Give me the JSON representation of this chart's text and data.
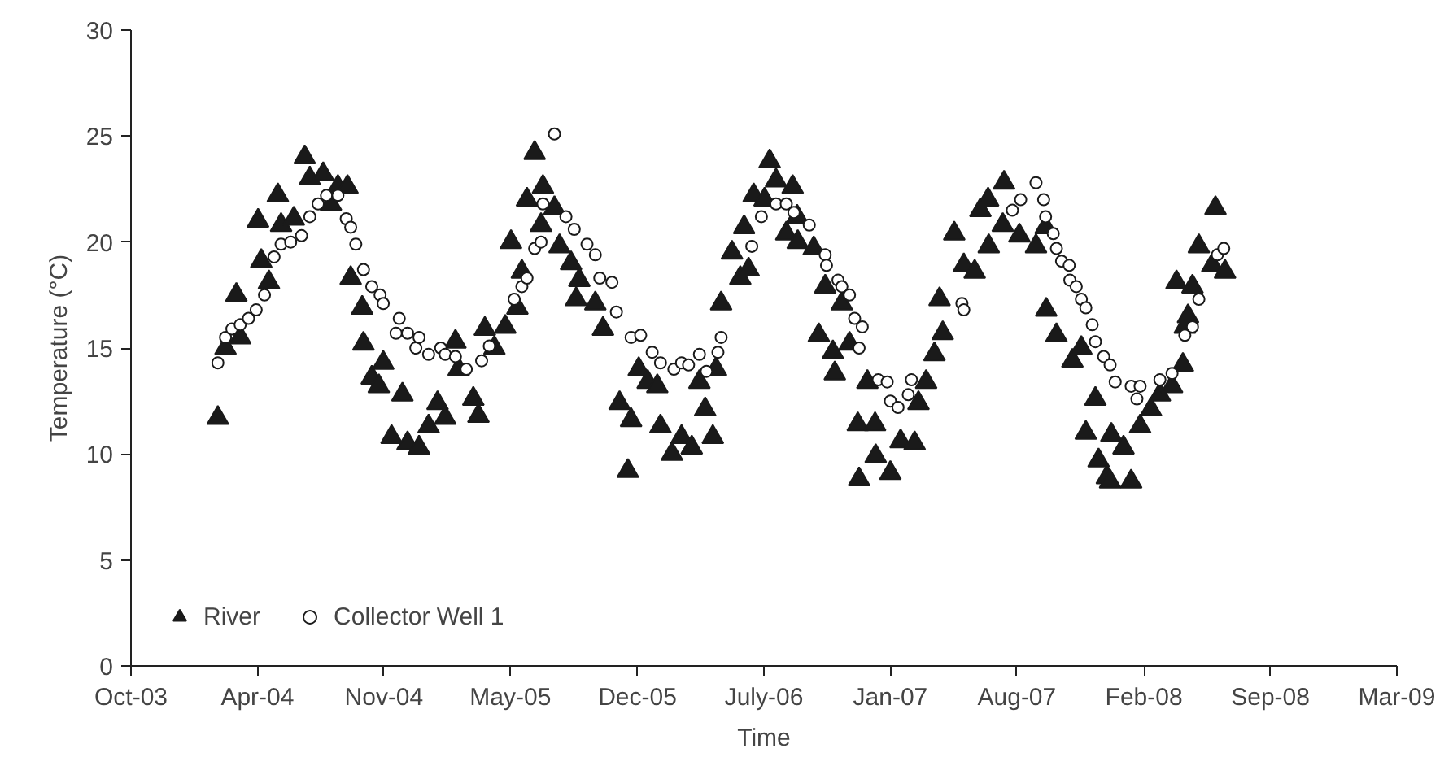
{
  "chart_data": {
    "type": "scatter",
    "xlabel": "Time",
    "ylabel": "Temperature (°C)",
    "xlim": [
      "2003-10-15",
      "2009-03-19"
    ],
    "ylim": [
      0,
      30
    ],
    "xticks": [
      {
        "value": "2003-10-15",
        "label": "Oct-03"
      },
      {
        "value": "2004-04-30",
        "label": "Apr-04"
      },
      {
        "value": "2004-11-14",
        "label": "Nov-04"
      },
      {
        "value": "2005-05-31",
        "label": "May-05"
      },
      {
        "value": "2005-12-16",
        "label": "Dec-05"
      },
      {
        "value": "2006-07-02",
        "label": "July-06"
      },
      {
        "value": "2007-01-16",
        "label": "Jan-07"
      },
      {
        "value": "2007-08-02",
        "label": "Aug-07"
      },
      {
        "value": "2008-02-17",
        "label": "Feb-08"
      },
      {
        "value": "2008-09-02",
        "label": "Sep-08"
      },
      {
        "value": "2009-03-19",
        "label": "Mar-09"
      }
    ],
    "yticks": [
      0,
      5,
      10,
      15,
      20,
      25,
      30
    ],
    "grid": false,
    "legend": "bottom left",
    "series": [
      {
        "name": "River",
        "color": "#1a1a1a",
        "marker": "triangle",
        "x": [
          "2004-02-28",
          "2004-03-11",
          "2004-03-28",
          "2004-04-03",
          "2004-05-01",
          "2004-05-06",
          "2004-05-18",
          "2004-06-01",
          "2004-06-06",
          "2004-06-26",
          "2004-07-13",
          "2004-07-21",
          "2004-08-11",
          "2004-08-23",
          "2004-09-03",
          "2004-09-18",
          "2004-09-23",
          "2004-10-11",
          "2004-10-13",
          "2004-10-26",
          "2004-11-06",
          "2004-11-13",
          "2004-11-26",
          "2004-12-13",
          "2004-12-21",
          "2005-01-08",
          "2005-01-23",
          "2005-02-06",
          "2005-02-18",
          "2005-03-06",
          "2005-03-11",
          "2005-04-03",
          "2005-04-11",
          "2005-04-21",
          "2005-05-06",
          "2005-05-23",
          "2005-06-01",
          "2005-06-11",
          "2005-06-18",
          "2005-06-26",
          "2005-07-08",
          "2005-07-18",
          "2005-07-21",
          "2005-08-08",
          "2005-08-16",
          "2005-09-03",
          "2005-09-11",
          "2005-09-16",
          "2005-10-11",
          "2005-10-23",
          "2005-11-18",
          "2005-12-01",
          "2005-12-06",
          "2005-12-18",
          "2006-01-01",
          "2006-01-16",
          "2006-01-21",
          "2006-02-08",
          "2006-02-23",
          "2006-03-11",
          "2006-03-23",
          "2006-04-01",
          "2006-04-13",
          "2006-04-18",
          "2006-04-26",
          "2006-05-13",
          "2006-05-26",
          "2006-06-01",
          "2006-06-08",
          "2006-06-16",
          "2006-07-03",
          "2006-07-11",
          "2006-07-21",
          "2006-08-06",
          "2006-08-16",
          "2006-08-23",
          "2006-08-24",
          "2006-09-18",
          "2006-09-26",
          "2006-10-06",
          "2006-10-18",
          "2006-10-21",
          "2006-11-01",
          "2006-11-13",
          "2006-11-26",
          "2006-11-28",
          "2006-12-11",
          "2006-12-23",
          "2006-12-24",
          "2007-01-16",
          "2007-02-01",
          "2007-02-23",
          "2007-03-01",
          "2007-03-13",
          "2007-03-26",
          "2007-04-03",
          "2007-04-08",
          "2007-04-26",
          "2007-05-11",
          "2007-05-28",
          "2007-06-06",
          "2007-06-18",
          "2007-06-19",
          "2007-07-11",
          "2007-07-13",
          "2007-08-06",
          "2007-09-01",
          "2007-09-16",
          "2007-09-17",
          "2007-10-03",
          "2007-10-28",
          "2007-11-11",
          "2007-11-18",
          "2007-12-03",
          "2007-12-08",
          "2007-12-21",
          "2007-12-26",
          "2007-12-28",
          "2008-01-16",
          "2008-01-28",
          "2008-02-11",
          "2008-02-28",
          "2008-03-13",
          "2008-04-01",
          "2008-04-08",
          "2008-04-18",
          "2008-04-21",
          "2008-04-26",
          "2008-05-03",
          "2008-05-13",
          "2008-06-03",
          "2008-06-08",
          "2008-06-23"
        ],
        "values": [
          11.7,
          15.0,
          17.5,
          15.5,
          21.0,
          19.1,
          18.1,
          22.2,
          20.8,
          21.1,
          24.0,
          23.0,
          23.2,
          21.8,
          22.6,
          22.6,
          18.3,
          16.9,
          15.2,
          13.6,
          13.2,
          14.3,
          10.8,
          12.8,
          10.5,
          10.3,
          11.3,
          12.4,
          11.7,
          15.3,
          14.0,
          12.6,
          11.8,
          15.9,
          15.0,
          16.0,
          20.0,
          16.9,
          18.6,
          22.0,
          24.2,
          20.8,
          22.6,
          21.6,
          19.8,
          19.0,
          17.3,
          18.2,
          17.1,
          15.9,
          12.4,
          9.2,
          11.6,
          14.0,
          13.4,
          13.2,
          11.3,
          10.0,
          10.8,
          10.3,
          13.4,
          12.1,
          10.8,
          14.0,
          17.1,
          19.5,
          18.3,
          20.7,
          18.7,
          22.2,
          22.0,
          23.8,
          22.9,
          20.4,
          22.6,
          21.2,
          20.0,
          19.7,
          15.6,
          17.9,
          14.8,
          13.8,
          17.1,
          15.2,
          11.4,
          8.8,
          13.4,
          11.4,
          9.9,
          9.1,
          10.6,
          10.5,
          12.4,
          13.4,
          14.7,
          17.3,
          15.7,
          20.4,
          18.9,
          18.6,
          21.5,
          22.0,
          19.8,
          20.8,
          22.8,
          20.3,
          19.8,
          20.7,
          16.8,
          15.6,
          14.4,
          15.0,
          11.0,
          12.6,
          9.7,
          8.9,
          8.7,
          10.9,
          10.3,
          8.7,
          11.3,
          12.1,
          12.8,
          13.2,
          18.1,
          14.2,
          16.0,
          16.5,
          17.9,
          19.8,
          18.9,
          21.6,
          18.6
        ]
      },
      {
        "name": "Collector Well 1",
        "color": "#1a1a1a",
        "marker": "circle",
        "x": [
          "2004-02-28",
          "2004-03-11",
          "2004-03-21",
          "2004-04-03",
          "2004-04-16",
          "2004-04-28",
          "2004-05-11",
          "2004-05-26",
          "2004-06-06",
          "2004-06-21",
          "2004-07-08",
          "2004-07-21",
          "2004-08-03",
          "2004-08-16",
          "2004-09-03",
          "2004-09-16",
          "2004-09-23",
          "2004-10-01",
          "2004-10-13",
          "2004-10-26",
          "2004-11-08",
          "2004-11-13",
          "2004-12-03",
          "2004-12-08",
          "2004-12-21",
          "2005-01-03",
          "2005-01-08",
          "2005-01-23",
          "2005-02-11",
          "2005-02-18",
          "2005-03-06",
          "2005-03-23",
          "2005-04-16",
          "2005-04-28",
          "2005-06-06",
          "2005-06-18",
          "2005-06-26",
          "2005-07-08",
          "2005-07-18",
          "2005-07-21",
          "2005-08-08",
          "2005-08-26",
          "2005-09-08",
          "2005-09-28",
          "2005-10-11",
          "2005-10-18",
          "2005-11-06",
          "2005-11-13",
          "2005-12-06",
          "2005-12-21",
          "2006-01-08",
          "2006-01-21",
          "2006-02-11",
          "2006-02-23",
          "2006-03-06",
          "2006-03-23",
          "2006-04-03",
          "2006-04-21",
          "2006-04-26",
          "2006-06-13",
          "2006-06-28",
          "2006-07-21",
          "2006-08-06",
          "2006-08-18",
          "2006-09-11",
          "2006-10-06",
          "2006-10-08",
          "2006-10-26",
          "2006-11-01",
          "2006-11-13",
          "2006-11-21",
          "2006-12-03",
          "2006-11-28",
          "2006-12-28",
          "2007-01-11",
          "2007-01-16",
          "2007-01-28",
          "2007-02-13",
          "2007-02-18",
          "2007-05-08",
          "2007-05-11",
          "2007-07-26",
          "2007-08-08",
          "2007-09-01",
          "2007-09-13",
          "2007-09-16",
          "2007-09-28",
          "2007-10-03",
          "2007-10-11",
          "2007-10-23",
          "2007-10-24",
          "2007-11-03",
          "2007-11-11",
          "2007-11-18",
          "2007-11-28",
          "2007-12-03",
          "2007-12-16",
          "2007-12-26",
          "2008-01-03",
          "2008-01-28",
          "2008-02-06",
          "2008-02-11",
          "2008-03-13",
          "2008-04-01",
          "2008-04-21",
          "2008-05-03",
          "2008-05-13",
          "2008-06-11",
          "2008-06-21"
        ],
        "values": [
          14.3,
          15.5,
          15.9,
          16.1,
          16.4,
          16.8,
          17.5,
          19.3,
          19.9,
          20.0,
          20.3,
          21.2,
          21.8,
          22.2,
          22.2,
          21.1,
          20.7,
          19.9,
          18.7,
          17.9,
          17.5,
          17.1,
          15.7,
          16.4,
          15.7,
          15.0,
          15.5,
          14.7,
          15.0,
          14.7,
          14.6,
          14.0,
          14.4,
          15.1,
          17.3,
          17.9,
          18.3,
          19.7,
          20.0,
          21.8,
          25.1,
          21.2,
          20.6,
          19.9,
          19.4,
          18.3,
          18.1,
          16.7,
          15.5,
          15.6,
          14.8,
          14.3,
          14.0,
          14.3,
          14.2,
          14.7,
          13.9,
          14.8,
          15.5,
          19.8,
          21.2,
          21.8,
          21.8,
          21.4,
          20.8,
          19.4,
          18.9,
          18.2,
          17.9,
          17.5,
          16.4,
          16.0,
          15.0,
          13.5,
          13.4,
          12.5,
          12.2,
          12.8,
          13.5,
          17.1,
          16.8,
          21.5,
          22.0,
          22.8,
          22.0,
          21.2,
          20.4,
          19.7,
          19.1,
          18.9,
          18.2,
          17.9,
          17.3,
          16.9,
          16.1,
          15.3,
          14.6,
          14.2,
          13.4,
          13.2,
          12.6,
          13.2,
          13.5,
          13.8,
          15.6,
          16.0,
          17.3,
          19.4,
          19.7
        ]
      }
    ]
  }
}
